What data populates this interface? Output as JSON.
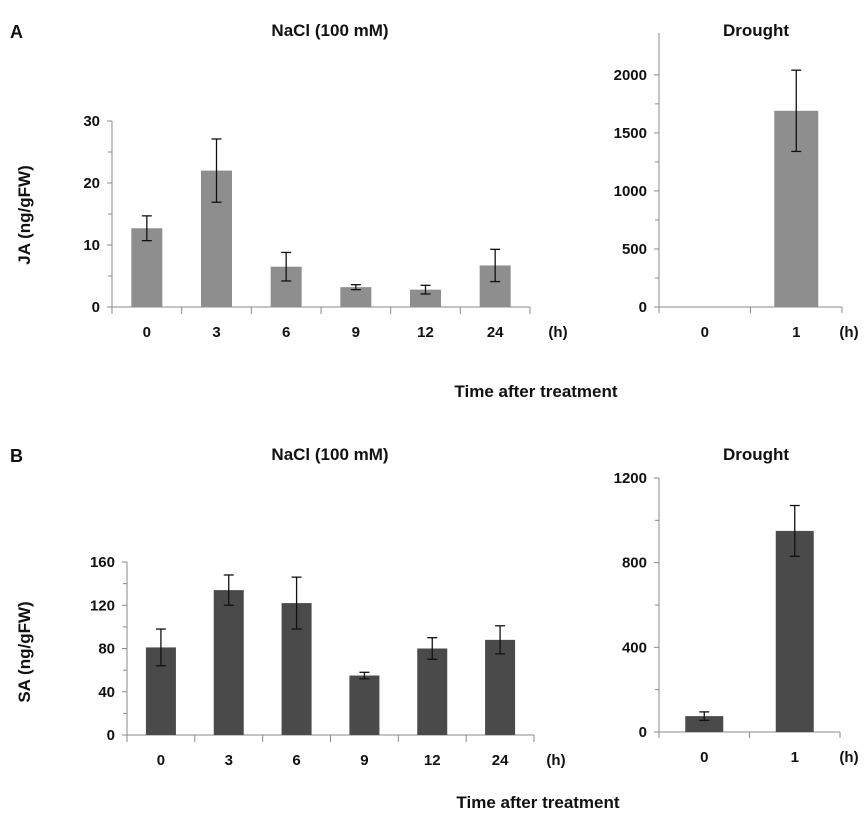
{
  "figure": {
    "x_title": "Time after treatment",
    "unit_label": "(h)"
  },
  "chart_data": [
    {
      "id": "A-nacl",
      "panel_label": "A",
      "type": "bar",
      "title": "NaCl (100 mM)",
      "ylabel": "JA (ng/gFW)",
      "categories": [
        "0",
        "3",
        "6",
        "9",
        "12",
        "24"
      ],
      "values": [
        12.7,
        22.0,
        6.5,
        3.2,
        2.8,
        6.7
      ],
      "errors": [
        2.0,
        5.1,
        2.3,
        0.4,
        0.7,
        2.6
      ],
      "ylim": [
        0,
        30
      ],
      "yticks": [
        0,
        10,
        20,
        30
      ],
      "bar_color": "#8e8e8e"
    },
    {
      "id": "A-drought",
      "panel_label": "",
      "type": "bar",
      "title": "Drought",
      "ylabel": "",
      "categories": [
        "0",
        "1"
      ],
      "values": [
        0,
        1690
      ],
      "errors": [
        0,
        350
      ],
      "ylim": [
        0,
        2300
      ],
      "yticks": [
        0,
        500,
        1000,
        1500,
        2000
      ],
      "bar_color": "#8e8e8e"
    },
    {
      "id": "B-nacl",
      "panel_label": "B",
      "type": "bar",
      "title": "NaCl (100 mM)",
      "ylabel": "SA (ng/gFW)",
      "categories": [
        "0",
        "3",
        "6",
        "9",
        "12",
        "24"
      ],
      "values": [
        81,
        134,
        122,
        55,
        80,
        88
      ],
      "errors": [
        17,
        14,
        24,
        3,
        10,
        13
      ],
      "ylim": [
        0,
        160
      ],
      "yticks": [
        0,
        40,
        80,
        120,
        160
      ],
      "bar_color": "#4a4a4a"
    },
    {
      "id": "B-drought",
      "panel_label": "",
      "type": "bar",
      "title": "Drought",
      "ylabel": "",
      "categories": [
        "0",
        "1"
      ],
      "values": [
        75,
        950
      ],
      "errors": [
        20,
        120
      ],
      "ylim": [
        0,
        1200
      ],
      "yticks": [
        0,
        400,
        800,
        1200
      ],
      "bar_color": "#4a4a4a"
    }
  ]
}
